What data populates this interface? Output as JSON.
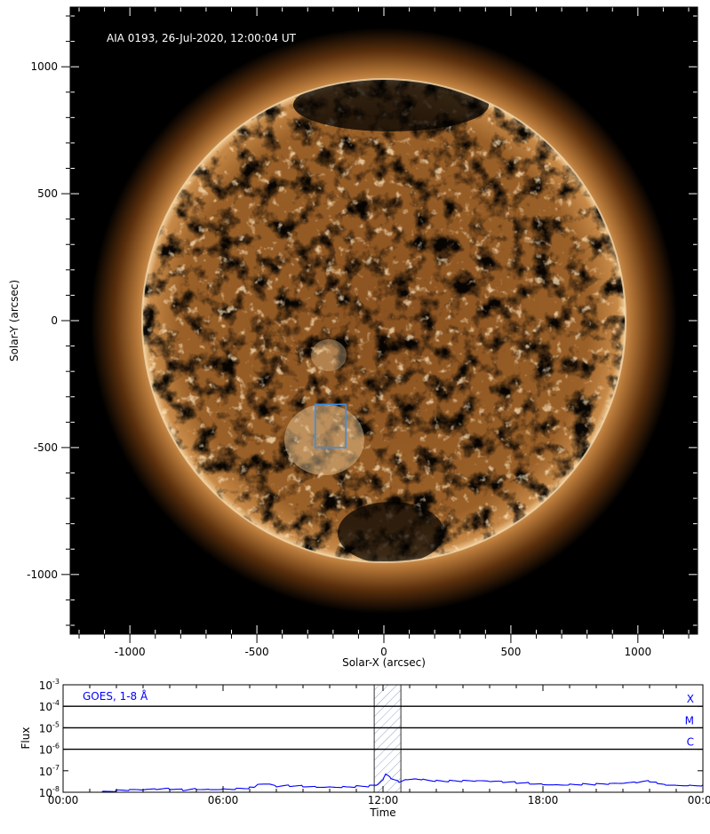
{
  "image_panel": {
    "title": "AIA 0193, 26-Jul-2020, 12:00:04 UT",
    "xlabel": "Solar-X (arcsec)",
    "ylabel": "Solar-Y (arcsec)",
    "xlim": [
      -1235,
      1235
    ],
    "ylim": [
      -1235,
      1235
    ],
    "major_ticks": [
      -1000,
      -500,
      0,
      500,
      1000
    ],
    "minor_tick_step": 100,
    "solar_radius_arcsec": 950,
    "roi_box": {
      "x": [
        -270,
        -150
      ],
      "y": [
        -500,
        -330
      ],
      "color": "#3a8fe8"
    },
    "colormap": "sdoaia193"
  },
  "chart_data": {
    "type": "line",
    "title": "",
    "legend": "GOES, 1-8 Å",
    "legend_color": "#0000ff",
    "xlabel": "Time",
    "ylabel": "Flux",
    "xlim_hours": [
      0,
      24
    ],
    "x_tick_labels": [
      "00:00",
      "06:00",
      "12:00",
      "18:00",
      "00:00"
    ],
    "y_scale": "log",
    "ylim": [
      1e-08,
      0.001
    ],
    "y_tick_labels": [
      {
        "base": "10",
        "exp": "-3"
      },
      {
        "base": "10",
        "exp": "-4"
      },
      {
        "base": "10",
        "exp": "-5"
      },
      {
        "base": "10",
        "exp": "-6"
      },
      {
        "base": "10",
        "exp": "-7"
      },
      {
        "base": "10",
        "exp": "-8"
      }
    ],
    "class_lines": [
      {
        "label": "X",
        "flux": 0.0001
      },
      {
        "label": "M",
        "flux": 1e-05
      },
      {
        "label": "C",
        "flux": 1e-06
      }
    ],
    "highlight_hours": [
      11.67,
      12.67
    ],
    "series": [
      {
        "color": "#0000ff",
        "x": [
          0.8,
          1.5,
          2,
          2.5,
          3,
          3.5,
          4,
          4.5,
          5,
          5.5,
          6,
          6.5,
          7,
          7.2,
          7.3,
          7.8,
          8,
          8.5,
          9,
          9.5,
          10,
          10.5,
          11,
          11.5,
          11.8,
          12.0,
          12.1,
          12.3,
          12.6,
          12.9,
          13.2,
          13.5,
          14,
          14.5,
          15,
          15.5,
          16,
          16.5,
          17,
          17.5,
          18,
          18.5,
          19,
          19.5,
          20,
          20.5,
          21,
          21.5,
          22,
          22.3,
          22.6,
          23,
          23.5,
          24
        ],
        "y": [
          1e-08,
          1.05e-08,
          1.15e-08,
          1.2e-08,
          1.2e-08,
          1.3e-08,
          1.4e-08,
          1.3e-08,
          1.5e-08,
          1.45e-08,
          1.5e-08,
          1.5e-08,
          1.6e-08,
          1.6e-08,
          2.1e-08,
          2.2e-08,
          1.8e-08,
          2e-08,
          2e-08,
          1.9e-08,
          1.9e-08,
          1.85e-08,
          1.9e-08,
          1.9e-08,
          2e-08,
          3.5e-08,
          7e-08,
          4.5e-08,
          3.2e-08,
          4.3e-08,
          4.6e-08,
          4.2e-08,
          3.5e-08,
          3.3e-08,
          3.2e-08,
          3.1e-08,
          3e-08,
          2.9e-08,
          2.8e-08,
          2.7e-08,
          2.5e-08,
          2.4e-08,
          2.4e-08,
          2.4e-08,
          2.3e-08,
          2.3e-08,
          2.4e-08,
          2.7e-08,
          3.2e-08,
          2.8e-08,
          2.4e-08,
          2.3e-08,
          2.2e-08,
          2.2e-08
        ]
      }
    ]
  }
}
